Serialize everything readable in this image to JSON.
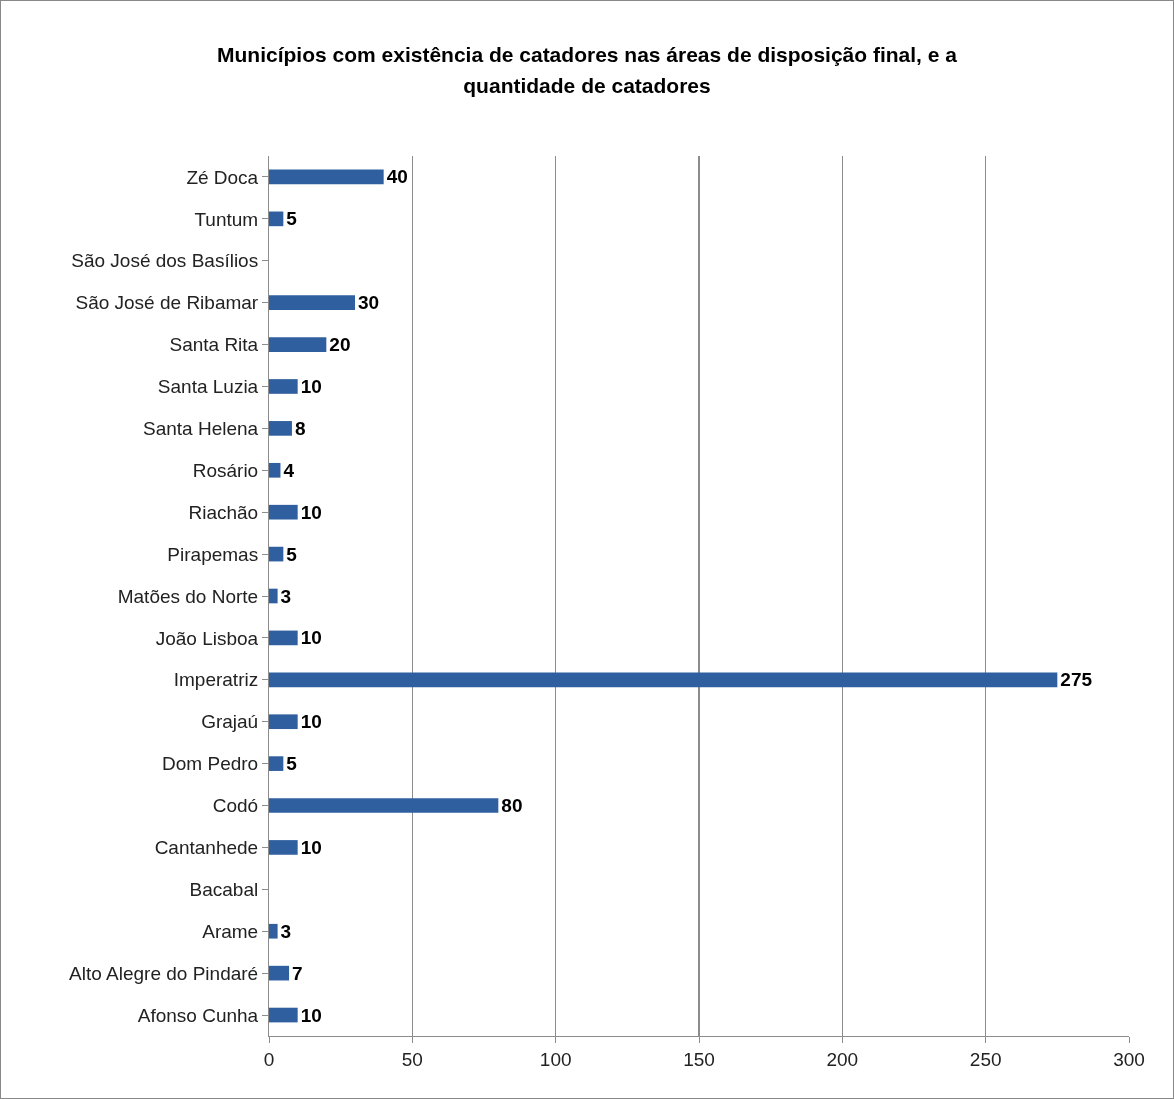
{
  "chart_data": {
    "type": "bar",
    "orientation": "horizontal",
    "title": "Municípios com existência de catadores nas áreas de disposição final, e a quantidade de catadores",
    "categories": [
      "Zé Doca",
      "Tuntum",
      "São José dos Basílios",
      "São José de Ribamar",
      "Santa Rita",
      "Santa Luzia",
      "Santa Helena",
      "Rosário",
      "Riachão",
      "Pirapemas",
      "Matões do Norte",
      "João Lisboa",
      "Imperatriz",
      "Grajaú",
      "Dom Pedro",
      "Codó",
      "Cantanhede",
      "Bacabal",
      "Arame",
      "Alto Alegre do Pindaré",
      "Afonso Cunha"
    ],
    "values": [
      40,
      5,
      null,
      30,
      20,
      10,
      8,
      4,
      10,
      5,
      3,
      10,
      275,
      10,
      5,
      80,
      10,
      null,
      3,
      7,
      10
    ],
    "color": "#2f5f9f",
    "xlim": [
      0,
      300
    ],
    "xticks": [
      0,
      50,
      100,
      150,
      200,
      250,
      300
    ],
    "grid": "x",
    "data_labels": true
  }
}
